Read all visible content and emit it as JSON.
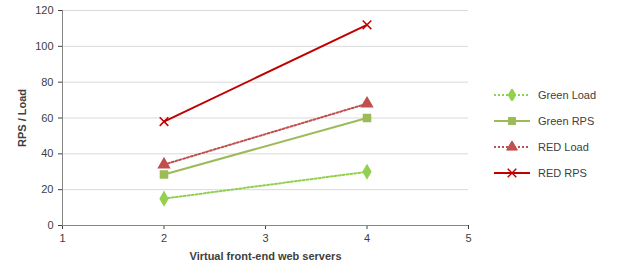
{
  "chart_data": {
    "type": "line",
    "x_label": "Virtual front-end web servers",
    "y_label": "RPS / Load",
    "x": [
      2,
      4
    ],
    "series": [
      {
        "name": "Green Load",
        "color": "#92d050",
        "values": [
          15,
          30
        ],
        "marker": "diamond",
        "line_style": "dotted"
      },
      {
        "name": "Green RPS",
        "color": "#9bbb59",
        "values": [
          28.5,
          60
        ],
        "marker": "square",
        "line_style": "solid"
      },
      {
        "name": "RED Load",
        "color": "#c0504d",
        "values": [
          34,
          68
        ],
        "marker": "triangle",
        "line_style": "dotted"
      },
      {
        "name": "RED RPS",
        "color": "#c00000",
        "values": [
          58,
          112
        ],
        "marker": "x",
        "line_style": "solid"
      }
    ],
    "xlim": [
      1,
      5
    ],
    "xticks": [
      1,
      2,
      3,
      4,
      5
    ],
    "ylim": [
      0,
      120
    ],
    "yticks": [
      0,
      20,
      40,
      60,
      80,
      100,
      120
    ],
    "grid": true,
    "legend": "right"
  }
}
